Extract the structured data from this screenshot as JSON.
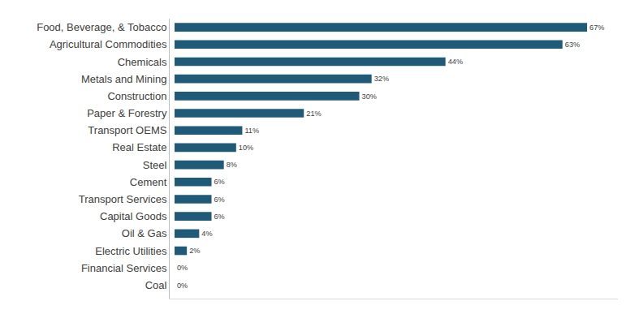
{
  "chart_data": {
    "type": "bar",
    "orientation": "horizontal",
    "categories": [
      "Food, Beverage, & Tobacco",
      "Agricultural Commodities",
      "Chemicals",
      "Metals and Mining",
      "Construction",
      "Paper & Forestry",
      "Transport OEMS",
      "Real Estate",
      "Steel",
      "Cement",
      "Transport Services",
      "Capital Goods",
      "Oil & Gas",
      "Electric Utilities",
      "Financial Services",
      "Coal"
    ],
    "values": [
      67,
      63,
      44,
      32,
      30,
      21,
      11,
      10,
      8,
      6,
      6,
      6,
      4,
      2,
      0,
      0
    ],
    "value_labels": [
      "67%",
      "63%",
      "44%",
      "32%",
      "30%",
      "21%",
      "11%",
      "10%",
      "8%",
      "6%",
      "6%",
      "6%",
      "4%",
      "2%",
      "0%",
      "0%"
    ],
    "color": "#1f5b78",
    "xlim": [
      0,
      72
    ],
    "grid": false,
    "data_labels": true,
    "tick_labels": "y"
  }
}
